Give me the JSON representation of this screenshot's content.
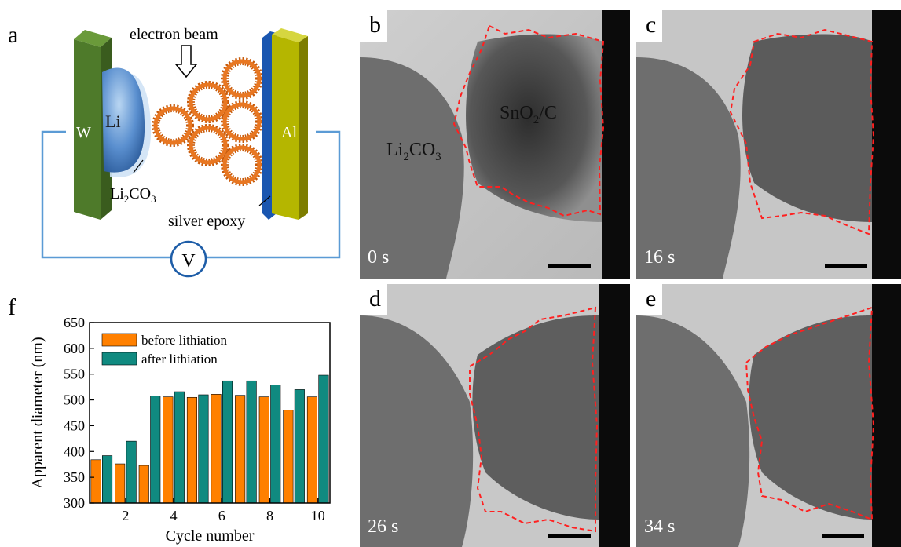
{
  "panel_labels": {
    "a": "a",
    "b": "b",
    "c": "c",
    "d": "d",
    "e": "e",
    "f": "f"
  },
  "schematic": {
    "electron_beam": "electron beam",
    "w_label": "W",
    "li_label": "Li",
    "al_label": "Al",
    "li2co3_label": "Li2CO3",
    "silver_epoxy_label": "silver epoxy",
    "voltage_label": "V",
    "colors": {
      "w_plate": "#4e7a2a",
      "al_plate": "#b5b600",
      "li": "#4f86c6",
      "wire": "#5b9bd5",
      "sphere": "#e87722"
    }
  },
  "tem": {
    "li2co3": "Li2CO3",
    "sno2c": "SnO2/C",
    "times": {
      "b": "0 s",
      "c": "16 s",
      "d": "26 s",
      "e": "34 s"
    },
    "outline_color": "#ff2020"
  },
  "chart_data": {
    "type": "bar",
    "x": [
      1,
      2,
      3,
      4,
      5,
      6,
      7,
      8,
      9,
      10
    ],
    "series": [
      {
        "name": "before lithiation",
        "color": "#ff8000",
        "values": [
          384,
          376,
          373,
          506,
          505,
          511,
          509,
          506,
          480,
          506
        ]
      },
      {
        "name": "after lithiation",
        "color": "#108a80",
        "values": [
          392,
          420,
          508,
          516,
          510,
          537,
          537,
          529,
          520,
          548
        ]
      }
    ],
    "xlabel": "Cycle number",
    "ylabel": "Apparent diameter (nm)",
    "ylim": [
      300,
      650
    ],
    "yticks": [
      300,
      350,
      400,
      450,
      500,
      550,
      600,
      650
    ],
    "xticks": [
      2,
      4,
      6,
      8,
      10
    ],
    "legend_position": "top-left"
  }
}
